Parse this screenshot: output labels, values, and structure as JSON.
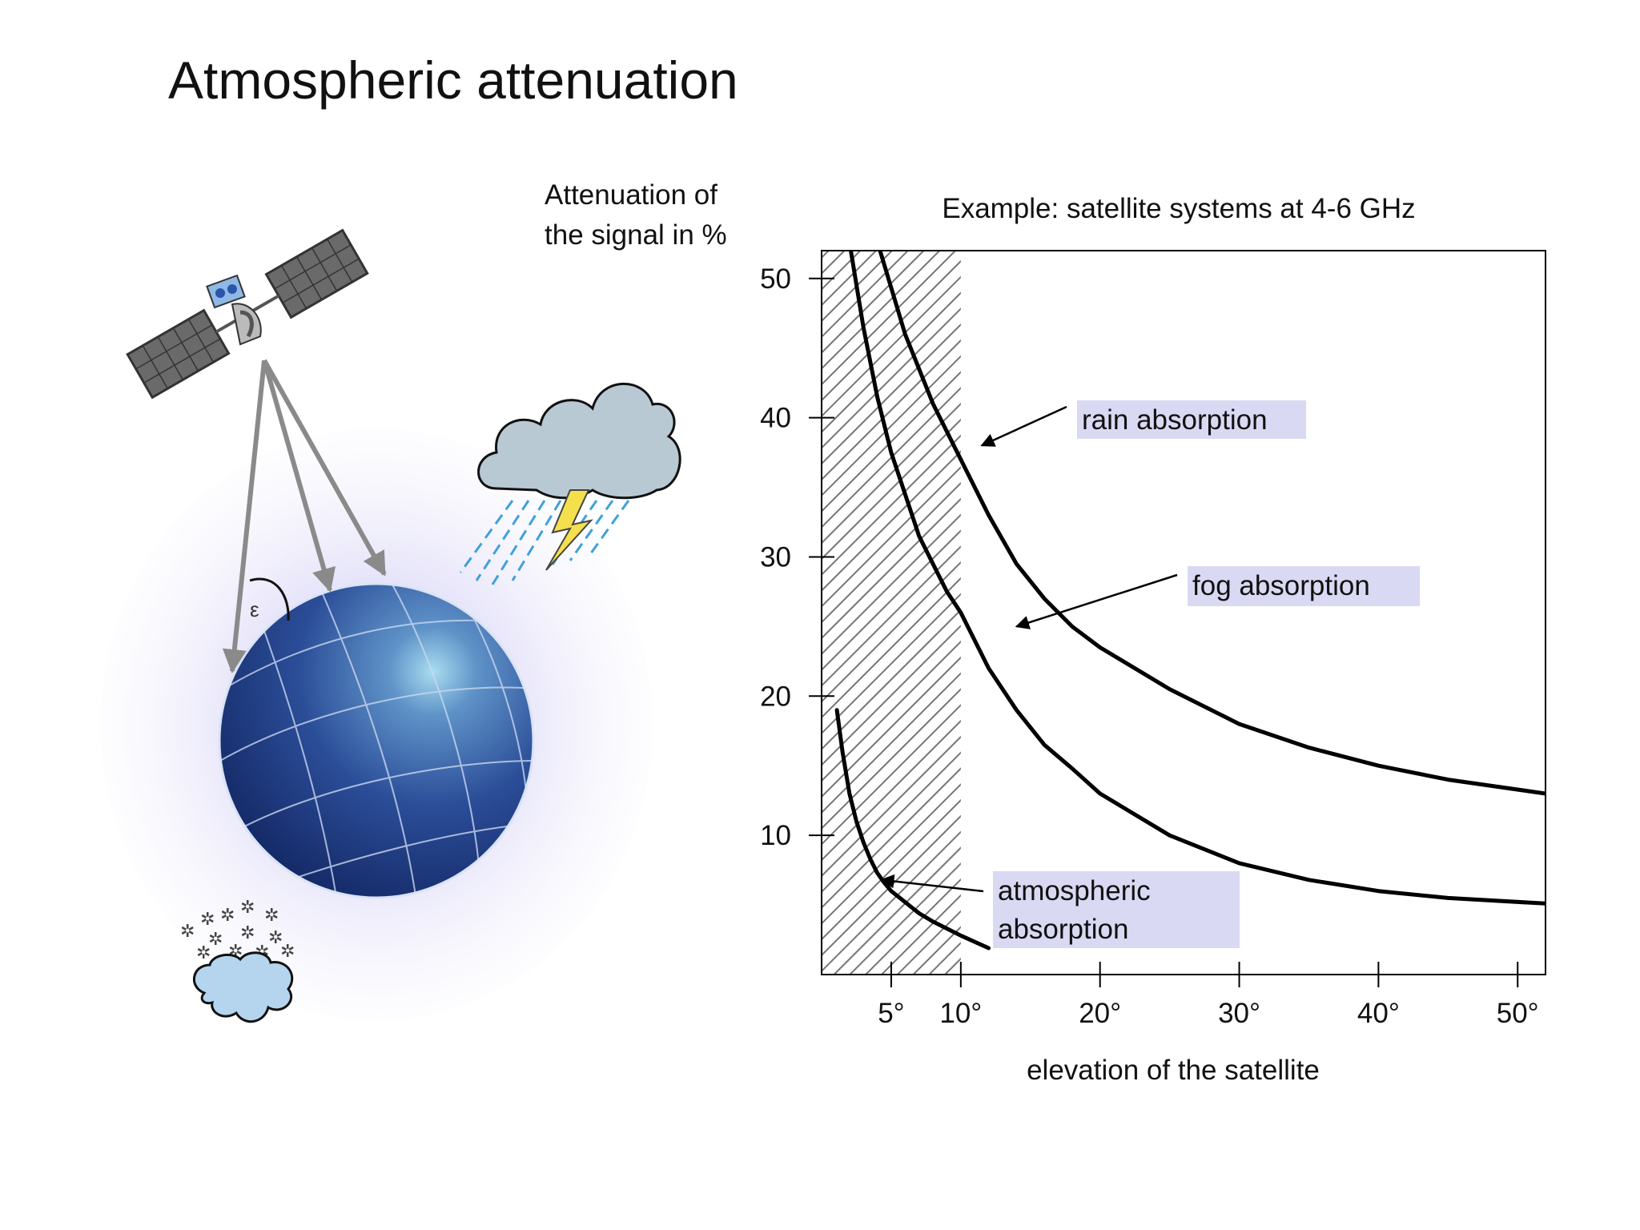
{
  "slide": {
    "title": "Atmospheric attenuation",
    "illustration": {
      "angle_symbol": "ε",
      "icons": [
        "satellite-icon",
        "earth-globe-icon",
        "thunderstorm-cloud-icon",
        "snow-cloud-icon",
        "elevation-angle-icon"
      ]
    }
  },
  "chart_data": {
    "type": "line",
    "title": "Example: satellite systems at 4-6 GHz",
    "ylabel_lines": [
      "Attenuation of",
      "the signal in %"
    ],
    "xlabel": "elevation of the satellite",
    "xlim": [
      0,
      52
    ],
    "ylim": [
      0,
      52
    ],
    "xticks": [
      5,
      10,
      20,
      30,
      40,
      50
    ],
    "xtick_labels": [
      "5°",
      "10°",
      "20°",
      "30°",
      "40°",
      "50°"
    ],
    "yticks": [
      10,
      20,
      30,
      40,
      50
    ],
    "ytick_labels": [
      "10",
      "20",
      "30",
      "40",
      "50"
    ],
    "grid": false,
    "shaded_region": {
      "x_from": 0,
      "x_to": 10,
      "pattern": "diagonal hatching"
    },
    "series": [
      {
        "name": "rain absorption",
        "x": [
          4.2,
          6,
          8,
          10,
          12,
          14,
          16,
          18,
          20,
          25,
          30,
          35,
          40,
          45,
          52
        ],
        "y": [
          52,
          46,
          41,
          37,
          33,
          29.5,
          27,
          25,
          23.5,
          20.5,
          18,
          16.3,
          15,
          14,
          13
        ]
      },
      {
        "name": "fog absorption",
        "x": [
          2.1,
          3,
          4,
          5,
          6,
          7,
          8,
          9,
          10,
          12,
          14,
          16,
          18,
          20,
          25,
          30,
          35,
          40,
          45,
          52
        ],
        "y": [
          52,
          46.5,
          41.5,
          37.5,
          34.5,
          31.5,
          29.5,
          27.5,
          26,
          22,
          19,
          16.5,
          14.8,
          13,
          10,
          8,
          6.8,
          6,
          5.5,
          5.1
        ]
      },
      {
        "name": "atmospheric absorption",
        "x": [
          1.1,
          1.5,
          2,
          2.5,
          3,
          3.5,
          4,
          4.5,
          5,
          6,
          7,
          8,
          9,
          10,
          12
        ],
        "y": [
          19,
          16,
          13,
          11,
          9.5,
          8.3,
          7.3,
          6.6,
          6,
          5.2,
          4.4,
          3.8,
          3.3,
          2.8,
          1.9
        ]
      }
    ],
    "annotations": [
      {
        "lines": [
          "rain absorption"
        ],
        "series": 0,
        "points_to": [
          11.5,
          38
        ]
      },
      {
        "lines": [
          "fog absorption"
        ],
        "series": 1,
        "points_to": [
          14,
          25
        ]
      },
      {
        "lines": [
          "atmospheric",
          "absorption"
        ],
        "series": 2,
        "points_to": [
          4.3,
          6.8
        ]
      }
    ],
    "colors": {
      "line": "#000000",
      "label_bg": "#d9d9f3",
      "hatch": "#555555"
    }
  }
}
